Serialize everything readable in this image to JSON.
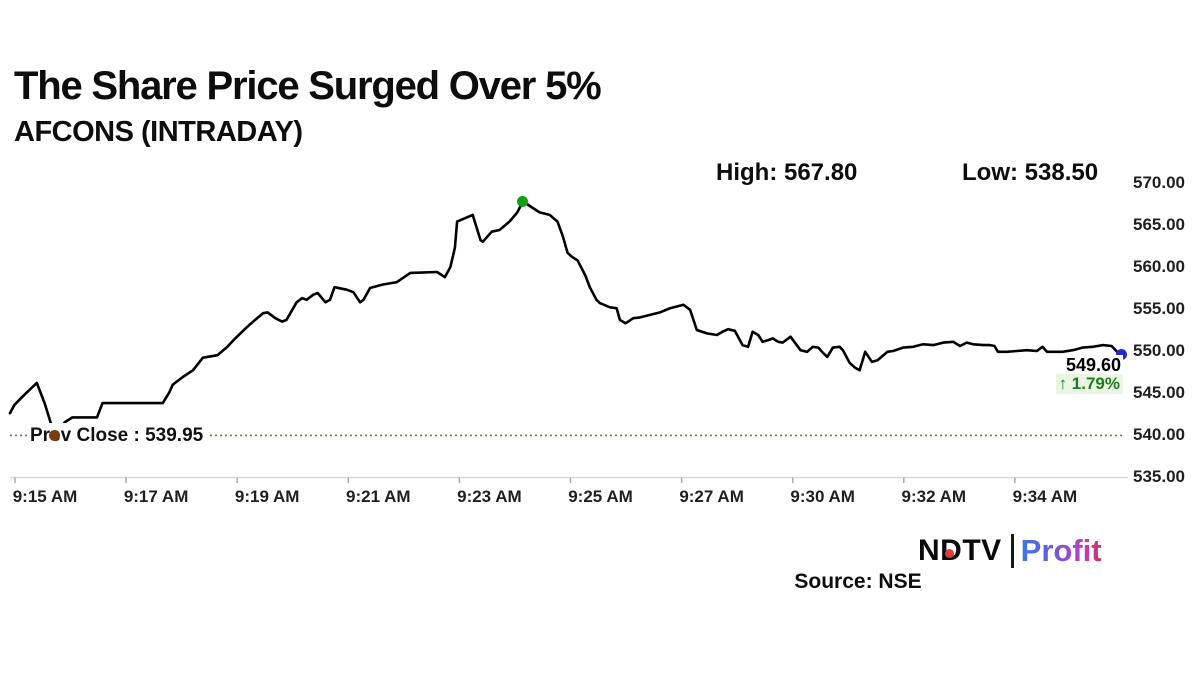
{
  "header": {
    "title": "The Share Price Surged Over 5%",
    "subtitle": "AFCONS (INTRADAY)"
  },
  "stats": {
    "high_label": "High: 567.80",
    "low_label": "Low: 538.50"
  },
  "chart_data": {
    "type": "line",
    "title": "AFCONS (INTRADAY)",
    "x_ticks": [
      "9:15 AM",
      "9:17 AM",
      "9:19 AM",
      "9:21 AM",
      "9:23 AM",
      "9:25 AM",
      "9:27 AM",
      "9:30 AM",
      "9:32 AM",
      "9:34 AM"
    ],
    "y_ticks": [
      "570.00",
      "565.00",
      "560.00",
      "555.00",
      "550.00",
      "545.00",
      "540.00",
      "535.00"
    ],
    "y_tick_values": [
      570,
      565,
      560,
      555,
      550,
      545,
      540,
      535
    ],
    "y_range": [
      535,
      570
    ],
    "high": 567.8,
    "low": 538.5,
    "prev_close": {
      "label": "Prev Close : 539.95",
      "value": 539.95
    },
    "last": {
      "price": 549.6,
      "price_label": "549.60",
      "change_pct": 1.79,
      "change_label": "↑ 1.79%"
    },
    "legend": "none",
    "grid": "off",
    "series": [
      {
        "name": "AFCONS share price",
        "points": [
          [
            0.0,
            542.6
          ],
          [
            0.004,
            543.6
          ],
          [
            0.013,
            544.8
          ],
          [
            0.024,
            546.2
          ],
          [
            0.031,
            543.8
          ],
          [
            0.038,
            540.8
          ],
          [
            0.041,
            538.6
          ],
          [
            0.045,
            540.6
          ],
          [
            0.049,
            541.5
          ],
          [
            0.056,
            542.1
          ],
          [
            0.078,
            542.1
          ],
          [
            0.083,
            543.8
          ],
          [
            0.137,
            543.8
          ],
          [
            0.143,
            545.1
          ],
          [
            0.146,
            546.0
          ],
          [
            0.155,
            546.9
          ],
          [
            0.164,
            547.7
          ],
          [
            0.173,
            549.2
          ],
          [
            0.186,
            549.5
          ],
          [
            0.195,
            550.5
          ],
          [
            0.202,
            551.5
          ],
          [
            0.213,
            552.9
          ],
          [
            0.218,
            553.5
          ],
          [
            0.227,
            554.5
          ],
          [
            0.231,
            554.6
          ],
          [
            0.238,
            553.9
          ],
          [
            0.244,
            553.5
          ],
          [
            0.248,
            553.7
          ],
          [
            0.257,
            555.8
          ],
          [
            0.262,
            556.3
          ],
          [
            0.266,
            556.1
          ],
          [
            0.272,
            556.7
          ],
          [
            0.276,
            556.9
          ],
          [
            0.283,
            555.8
          ],
          [
            0.287,
            556.1
          ],
          [
            0.291,
            557.6
          ],
          [
            0.302,
            557.3
          ],
          [
            0.308,
            557.0
          ],
          [
            0.314,
            555.8
          ],
          [
            0.317,
            556.1
          ],
          [
            0.323,
            557.5
          ],
          [
            0.334,
            557.9
          ],
          [
            0.347,
            558.2
          ],
          [
            0.359,
            559.3
          ],
          [
            0.383,
            559.4
          ],
          [
            0.39,
            558.8
          ],
          [
            0.395,
            560.0
          ],
          [
            0.399,
            562.3
          ],
          [
            0.401,
            565.4
          ],
          [
            0.415,
            566.2
          ],
          [
            0.422,
            563.2
          ],
          [
            0.424,
            563.0
          ],
          [
            0.432,
            564.2
          ],
          [
            0.439,
            564.4
          ],
          [
            0.448,
            565.4
          ],
          [
            0.455,
            566.5
          ],
          [
            0.46,
            567.8
          ],
          [
            0.475,
            566.5
          ],
          [
            0.484,
            566.2
          ],
          [
            0.491,
            565.4
          ],
          [
            0.496,
            563.6
          ],
          [
            0.5,
            561.7
          ],
          [
            0.504,
            561.2
          ],
          [
            0.509,
            560.8
          ],
          [
            0.516,
            559.0
          ],
          [
            0.52,
            557.6
          ],
          [
            0.526,
            556.1
          ],
          [
            0.529,
            555.7
          ],
          [
            0.538,
            555.2
          ],
          [
            0.544,
            555.1
          ],
          [
            0.547,
            553.7
          ],
          [
            0.552,
            553.3
          ],
          [
            0.559,
            553.9
          ],
          [
            0.565,
            554.0
          ],
          [
            0.574,
            554.3
          ],
          [
            0.583,
            554.6
          ],
          [
            0.592,
            555.1
          ],
          [
            0.604,
            555.5
          ],
          [
            0.61,
            554.9
          ],
          [
            0.616,
            552.5
          ],
          [
            0.625,
            552.1
          ],
          [
            0.634,
            551.9
          ],
          [
            0.639,
            552.3
          ],
          [
            0.644,
            552.6
          ],
          [
            0.65,
            552.4
          ],
          [
            0.657,
            550.7
          ],
          [
            0.662,
            550.5
          ],
          [
            0.666,
            552.3
          ],
          [
            0.671,
            551.9
          ],
          [
            0.675,
            551.1
          ],
          [
            0.68,
            551.3
          ],
          [
            0.684,
            551.5
          ],
          [
            0.689,
            551.1
          ],
          [
            0.693,
            551.0
          ],
          [
            0.7,
            551.7
          ],
          [
            0.709,
            550.1
          ],
          [
            0.715,
            549.9
          ],
          [
            0.72,
            550.5
          ],
          [
            0.725,
            550.4
          ],
          [
            0.729,
            549.8
          ],
          [
            0.733,
            549.3
          ],
          [
            0.738,
            550.4
          ],
          [
            0.744,
            550.5
          ],
          [
            0.747,
            550.1
          ],
          [
            0.753,
            548.6
          ],
          [
            0.758,
            548.0
          ],
          [
            0.762,
            547.7
          ],
          [
            0.767,
            549.9
          ],
          [
            0.773,
            548.7
          ],
          [
            0.778,
            548.9
          ],
          [
            0.787,
            549.9
          ],
          [
            0.792,
            550.0
          ],
          [
            0.801,
            550.4
          ],
          [
            0.81,
            550.5
          ],
          [
            0.819,
            550.8
          ],
          [
            0.828,
            550.7
          ],
          [
            0.837,
            551.0
          ],
          [
            0.846,
            551.1
          ],
          [
            0.852,
            550.6
          ],
          [
            0.858,
            551.0
          ],
          [
            0.864,
            550.8
          ],
          [
            0.873,
            550.7
          ],
          [
            0.879,
            550.7
          ],
          [
            0.883,
            550.6
          ],
          [
            0.886,
            549.9
          ],
          [
            0.894,
            549.9
          ],
          [
            0.903,
            550.0
          ],
          [
            0.912,
            550.1
          ],
          [
            0.921,
            550.0
          ],
          [
            0.926,
            550.5
          ],
          [
            0.93,
            549.9
          ],
          [
            0.935,
            549.9
          ],
          [
            0.944,
            549.9
          ],
          [
            0.953,
            550.1
          ],
          [
            0.962,
            550.4
          ],
          [
            0.971,
            550.5
          ],
          [
            0.98,
            550.7
          ],
          [
            0.988,
            550.6
          ],
          [
            0.993,
            549.9
          ],
          [
            0.997,
            549.6
          ]
        ]
      }
    ],
    "markers": [
      {
        "name": "open-marker",
        "f": 0.04,
        "v": 539.95,
        "color": "#7a3b10"
      },
      {
        "name": "high-marker",
        "f": 0.46,
        "v": 567.8,
        "color": "#12a012"
      },
      {
        "name": "last-marker",
        "f": 0.997,
        "v": 549.6,
        "color": "#2727cf"
      }
    ],
    "colors": {
      "line": "#000000",
      "prev_close_line": "#a65c47",
      "axis_line": "#d8d8d8",
      "tick": "#aaaaaa",
      "change_text": "#1f7d1f",
      "high_dot": "#12a012",
      "last_dot": "#2727cf",
      "open_dot": "#7a3b10",
      "logo_red": "#e23b3b"
    }
  },
  "footer": {
    "source": "Source: NSE",
    "logo": {
      "ndtv": "NDTV",
      "profit": "Profit"
    }
  }
}
